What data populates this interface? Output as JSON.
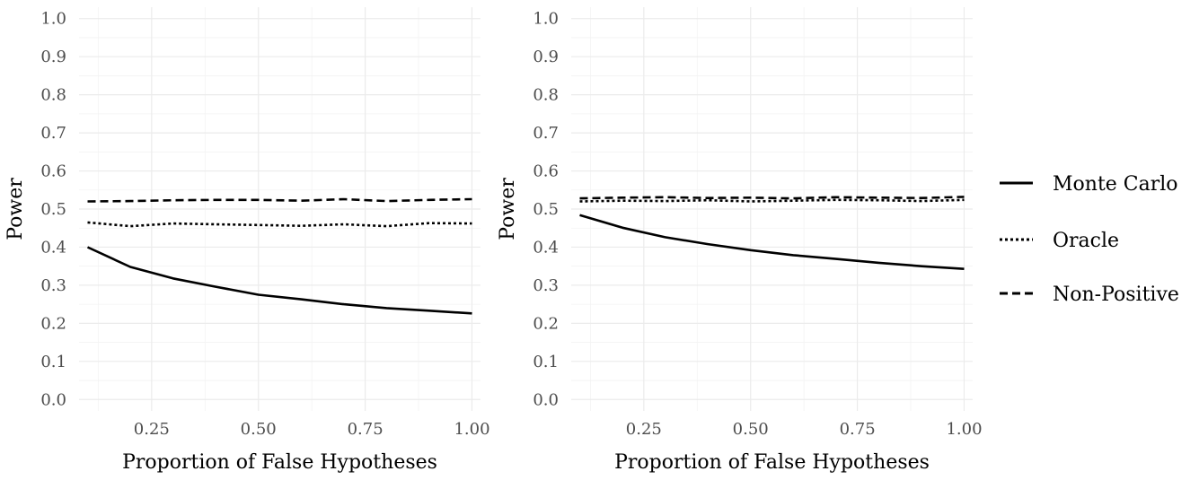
{
  "chart_data": [
    {
      "type": "line",
      "xlabel": "Proportion of False Hypotheses",
      "ylabel": "Power",
      "xlim": [
        0.08,
        1.02
      ],
      "ylim": [
        -0.03,
        1.03
      ],
      "xticks": [
        0.25,
        0.5,
        0.75,
        1.0
      ],
      "xtick_labels": [
        "0.25",
        "0.50",
        "0.75",
        "1.00"
      ],
      "yticks": [
        0.0,
        0.1,
        0.2,
        0.3,
        0.4,
        0.5,
        0.6,
        0.7,
        0.8,
        0.9,
        1.0
      ],
      "ytick_labels": [
        "0.0",
        "0.1",
        "0.2",
        "0.3",
        "0.4",
        "0.5",
        "0.6",
        "0.7",
        "0.8",
        "0.9",
        "1.0"
      ],
      "grid": true,
      "x": [
        0.1,
        0.2,
        0.3,
        0.4,
        0.5,
        0.6,
        0.7,
        0.8,
        0.9,
        1.0
      ],
      "series": [
        {
          "name": "Monte Carlo",
          "linestyle": "solid",
          "values": [
            0.4,
            0.348,
            0.318,
            0.296,
            0.275,
            0.263,
            0.25,
            0.24,
            0.233,
            0.226
          ]
        },
        {
          "name": "Oracle",
          "linestyle": "dotted",
          "values": [
            0.465,
            0.455,
            0.462,
            0.46,
            0.458,
            0.456,
            0.46,
            0.455,
            0.463,
            0.462
          ]
        },
        {
          "name": "Non-Positive",
          "linestyle": "dashed",
          "values": [
            0.52,
            0.521,
            0.523,
            0.524,
            0.524,
            0.522,
            0.526,
            0.521,
            0.524,
            0.526
          ]
        }
      ]
    },
    {
      "type": "line",
      "xlabel": "Proportion of False Hypotheses",
      "ylabel": "Power",
      "xlim": [
        0.08,
        1.02
      ],
      "ylim": [
        -0.03,
        1.03
      ],
      "xticks": [
        0.25,
        0.5,
        0.75,
        1.0
      ],
      "xtick_labels": [
        "0.25",
        "0.50",
        "0.75",
        "1.00"
      ],
      "yticks": [
        0.0,
        0.1,
        0.2,
        0.3,
        0.4,
        0.5,
        0.6,
        0.7,
        0.8,
        0.9,
        1.0
      ],
      "ytick_labels": [
        "0.0",
        "0.1",
        "0.2",
        "0.3",
        "0.4",
        "0.5",
        "0.6",
        "0.7",
        "0.8",
        "0.9",
        "1.0"
      ],
      "grid": true,
      "x": [
        0.1,
        0.2,
        0.3,
        0.4,
        0.5,
        0.6,
        0.7,
        0.8,
        0.9,
        1.0
      ],
      "series": [
        {
          "name": "Monte Carlo",
          "linestyle": "solid",
          "values": [
            0.484,
            0.451,
            0.426,
            0.408,
            0.392,
            0.379,
            0.369,
            0.359,
            0.35,
            0.343
          ]
        },
        {
          "name": "Oracle",
          "linestyle": "dotted",
          "values": [
            0.52,
            0.522,
            0.521,
            0.523,
            0.52,
            0.522,
            0.524,
            0.523,
            0.521,
            0.524
          ]
        },
        {
          "name": "Non-Positive",
          "linestyle": "dashed",
          "values": [
            0.528,
            0.53,
            0.531,
            0.529,
            0.53,
            0.528,
            0.531,
            0.53,
            0.529,
            0.532
          ]
        }
      ]
    }
  ],
  "legend": {
    "position": "right",
    "items": [
      {
        "name": "Monte Carlo",
        "linestyle": "solid"
      },
      {
        "name": "Oracle",
        "linestyle": "dotted"
      },
      {
        "name": "Non-Positive",
        "linestyle": "dashed"
      }
    ]
  },
  "colors": {
    "line": "#000000",
    "grid": "#ebebeb",
    "tick_text": "#4d4d4d"
  }
}
